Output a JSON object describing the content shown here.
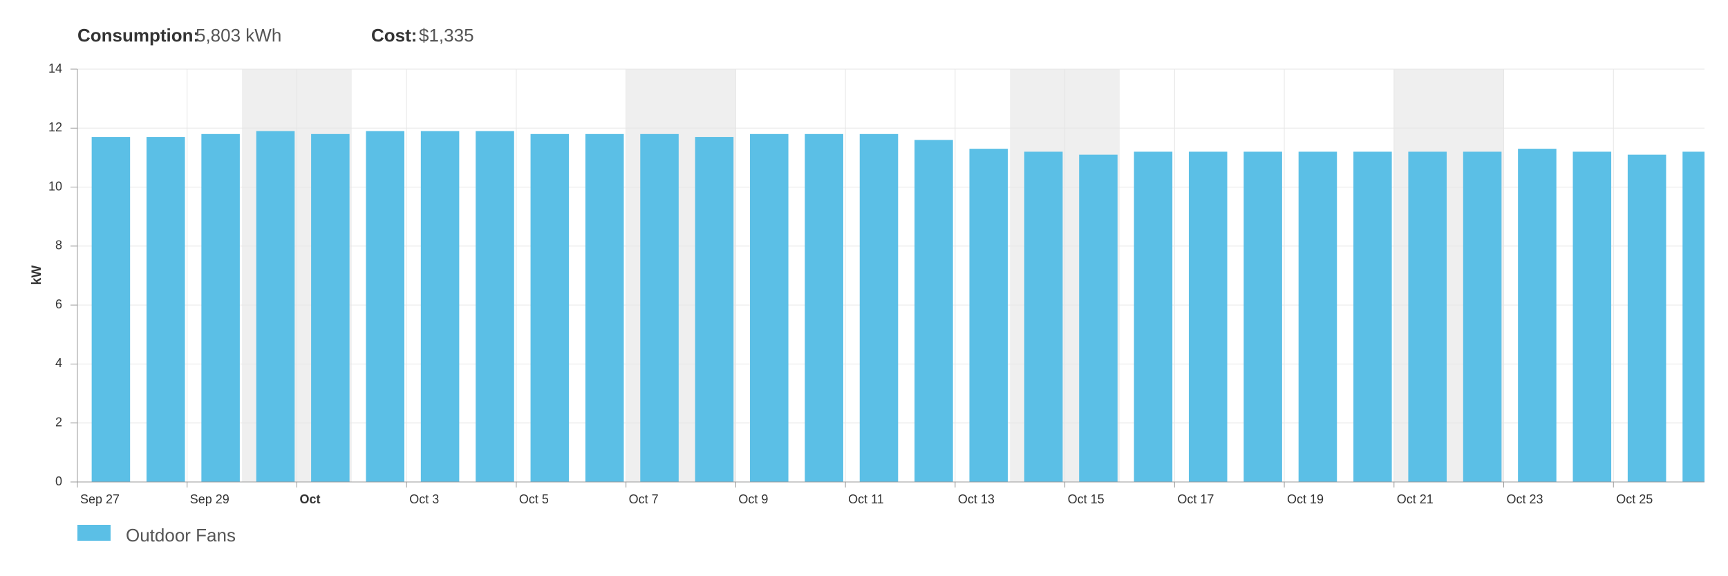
{
  "header": {
    "consumption_label": "Consumption:",
    "consumption_value": "5,803 kWh",
    "cost_label": "Cost:",
    "cost_value": "$1,335"
  },
  "chart_data": {
    "type": "bar",
    "y_label": "kW",
    "categories": [
      "Sep 27",
      null,
      "Sep 29",
      null,
      "Oct",
      null,
      "Oct 3",
      null,
      "Oct 5",
      null,
      "Oct 7",
      null,
      "Oct 9",
      null,
      "Oct 11",
      null,
      "Oct 13",
      null,
      "Oct 15",
      null,
      "Oct 17",
      null,
      "Oct 19",
      null,
      "Oct 21",
      null,
      "Oct 23",
      null,
      "Oct 25",
      null
    ],
    "series": [
      {
        "name": "Outdoor Fans",
        "color": "#5bbfe6",
        "values": [
          11.7,
          11.7,
          11.8,
          11.9,
          11.8,
          11.9,
          11.9,
          11.9,
          11.8,
          11.8,
          11.8,
          11.7,
          11.8,
          11.8,
          11.8,
          11.6,
          11.3,
          11.2,
          11.1,
          11.2,
          11.2,
          11.2,
          11.2,
          11.2,
          11.2,
          11.2,
          11.3,
          11.2,
          11.1,
          11.2
        ]
      }
    ],
    "ylim": [
      0,
      14
    ],
    "yticks": [
      0,
      2,
      4,
      6,
      8,
      10,
      12,
      14
    ],
    "grid": true
  }
}
